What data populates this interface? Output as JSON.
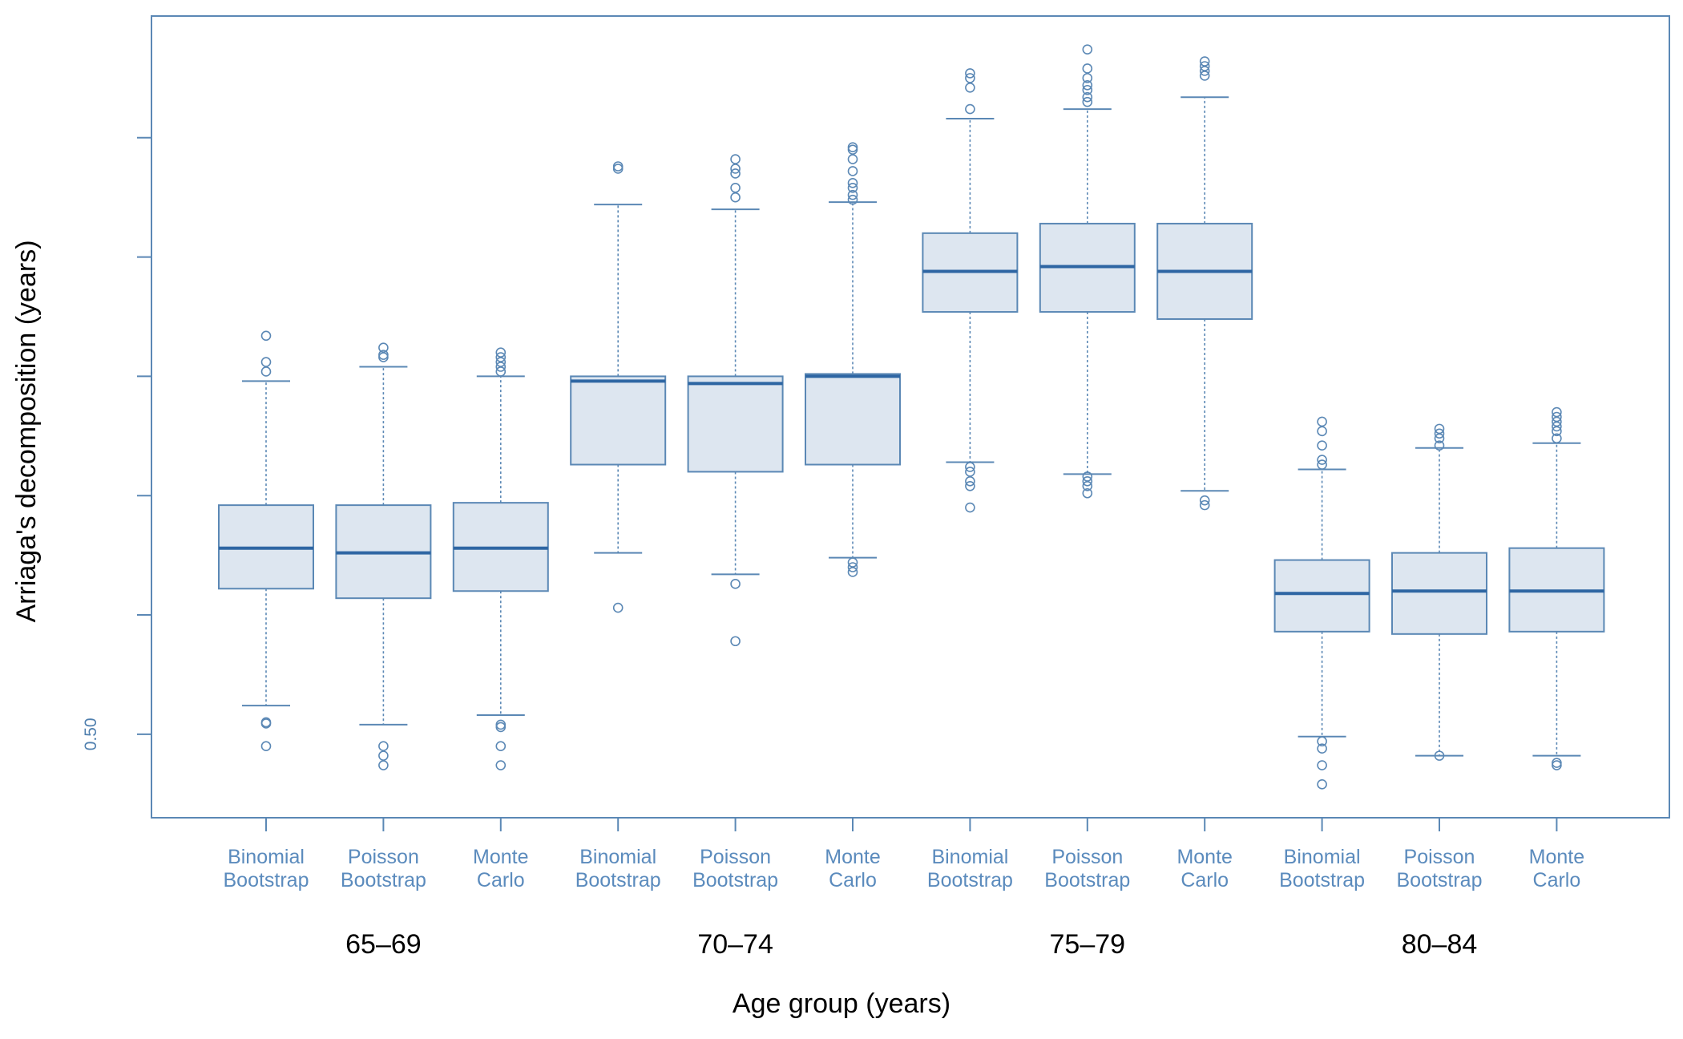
{
  "chart_data": {
    "type": "boxplot",
    "xlabel": "Age group (years)",
    "ylabel": "Arriaga's decomposition (years)",
    "ylim": [
      0.465,
      0.801
    ],
    "y_ticks": [
      {
        "value": 0.5,
        "label": "0.50"
      },
      {
        "value": 0.55,
        "label": ""
      },
      {
        "value": 0.6,
        "label": ""
      },
      {
        "value": 0.65,
        "label": ""
      },
      {
        "value": 0.7,
        "label": ""
      },
      {
        "value": 0.75,
        "label": ""
      }
    ],
    "method_labels": {
      "Binomial Bootstrap": [
        "Binomial",
        "Bootstrap"
      ],
      "Poisson Bootstrap": [
        "Poisson",
        "Bootstrap"
      ],
      "Monte Carlo": [
        "Monte",
        "Carlo"
      ]
    },
    "colors": {
      "box_fill": "#dde6f0",
      "box_border": "#5b88b5",
      "median": "#2e66a3",
      "whisker": "#5b88b5",
      "outlier": "#5b88b5",
      "frame": "#5b88b5"
    },
    "groups": [
      {
        "label": "65–69",
        "boxes": [
          {
            "method": "Binomial Bootstrap",
            "whisker_low": 0.512,
            "q1": 0.561,
            "median": 0.578,
            "q3": 0.596,
            "whisker_high": 0.648,
            "outliers": [
              0.5045,
              0.505,
              0.495,
              0.652,
              0.656,
              0.667
            ]
          },
          {
            "method": "Poisson Bootstrap",
            "whisker_low": 0.504,
            "q1": 0.557,
            "median": 0.576,
            "q3": 0.596,
            "whisker_high": 0.654,
            "outliers": [
              0.495,
              0.491,
              0.487,
              0.658,
              0.659,
              0.662
            ]
          },
          {
            "method": "Monte Carlo",
            "whisker_low": 0.508,
            "q1": 0.56,
            "median": 0.578,
            "q3": 0.597,
            "whisker_high": 0.65,
            "outliers": [
              0.504,
              0.503,
              0.495,
              0.487,
              0.652,
              0.654,
              0.656,
              0.658,
              0.66
            ]
          }
        ]
      },
      {
        "label": "70–74",
        "boxes": [
          {
            "method": "Binomial Bootstrap",
            "whisker_low": 0.576,
            "q1": 0.613,
            "median": 0.648,
            "q3": 0.65,
            "whisker_high": 0.722,
            "outliers": [
              0.553,
              0.737,
              0.738
            ]
          },
          {
            "method": "Poisson Bootstrap",
            "whisker_low": 0.567,
            "q1": 0.61,
            "median": 0.647,
            "q3": 0.65,
            "whisker_high": 0.72,
            "outliers": [
              0.563,
              0.539,
              0.725,
              0.729,
              0.735,
              0.737,
              0.741
            ]
          },
          {
            "method": "Monte Carlo",
            "whisker_low": 0.574,
            "q1": 0.613,
            "median": 0.65,
            "q3": 0.651,
            "whisker_high": 0.723,
            "outliers": [
              0.572,
              0.57,
              0.568,
              0.724,
              0.726,
              0.729,
              0.731,
              0.736,
              0.741,
              0.745,
              0.746
            ]
          }
        ]
      },
      {
        "label": "75–79",
        "boxes": [
          {
            "method": "Binomial Bootstrap",
            "whisker_low": 0.614,
            "q1": 0.677,
            "median": 0.694,
            "q3": 0.71,
            "whisker_high": 0.758,
            "outliers": [
              0.612,
              0.61,
              0.606,
              0.604,
              0.595,
              0.762,
              0.771,
              0.775,
              0.777
            ]
          },
          {
            "method": "Poisson Bootstrap",
            "whisker_low": 0.609,
            "q1": 0.677,
            "median": 0.696,
            "q3": 0.714,
            "whisker_high": 0.762,
            "outliers": [
              0.608,
              0.606,
              0.604,
              0.601,
              0.765,
              0.767,
              0.77,
              0.772,
              0.775,
              0.779,
              0.787
            ]
          },
          {
            "method": "Monte Carlo",
            "whisker_low": 0.602,
            "q1": 0.674,
            "median": 0.694,
            "q3": 0.714,
            "whisker_high": 0.767,
            "outliers": [
              0.598,
              0.596,
              0.776,
              0.778,
              0.78,
              0.782
            ]
          }
        ]
      },
      {
        "label": "80–84",
        "boxes": [
          {
            "method": "Binomial Bootstrap",
            "whisker_low": 0.499,
            "q1": 0.543,
            "median": 0.559,
            "q3": 0.573,
            "whisker_high": 0.611,
            "outliers": [
              0.497,
              0.494,
              0.487,
              0.479,
              0.613,
              0.615,
              0.621,
              0.627,
              0.631
            ]
          },
          {
            "method": "Poisson Bootstrap",
            "whisker_low": 0.491,
            "q1": 0.542,
            "median": 0.56,
            "q3": 0.576,
            "whisker_high": 0.62,
            "outliers": [
              0.491,
              0.621,
              0.624,
              0.626,
              0.628
            ]
          },
          {
            "method": "Monte Carlo",
            "whisker_low": 0.491,
            "q1": 0.543,
            "median": 0.56,
            "q3": 0.578,
            "whisker_high": 0.622,
            "outliers": [
              0.488,
              0.487,
              0.624,
              0.627,
              0.629,
              0.631,
              0.633,
              0.635
            ]
          }
        ]
      }
    ]
  }
}
